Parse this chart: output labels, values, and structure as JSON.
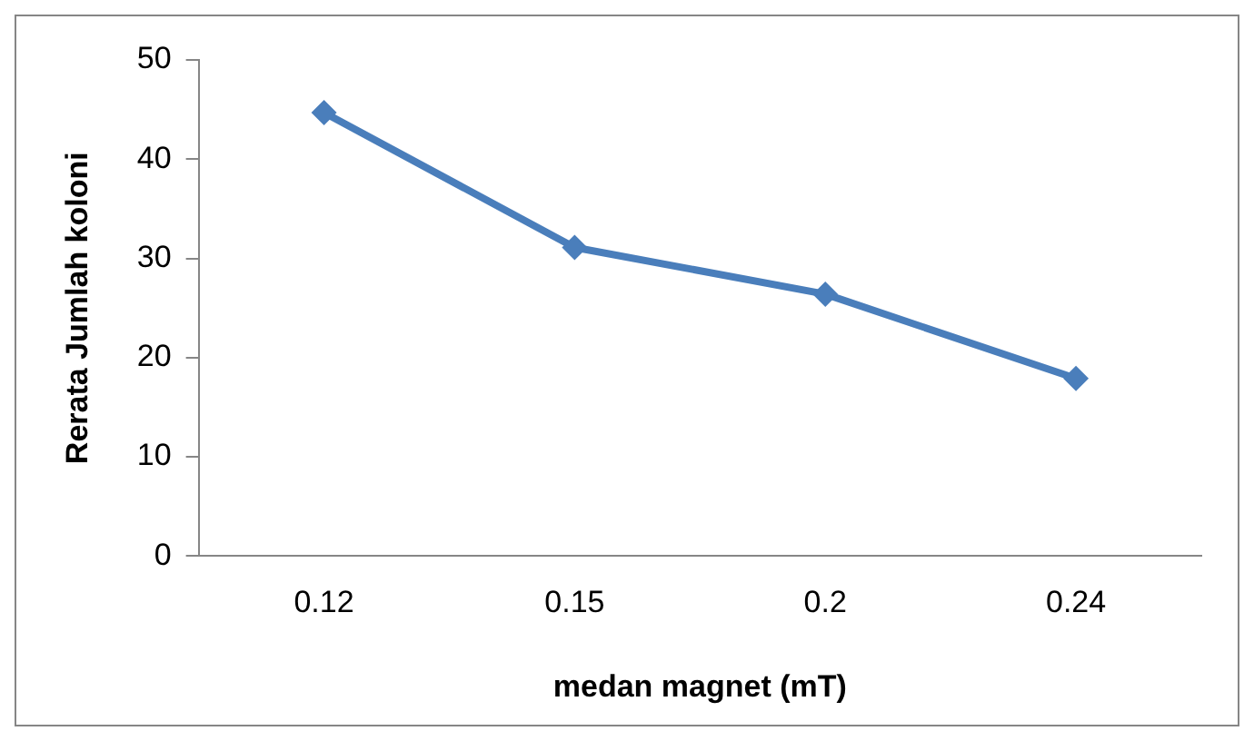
{
  "chart_data": {
    "type": "line",
    "xlabel": "medan magnet (mT)",
    "ylabel": "Rerata Jumlah koloni",
    "categories": [
      "0.12",
      "0.15",
      "0.2",
      "0.24"
    ],
    "series": [
      {
        "color": "#4a7ebb",
        "values": [
          44.7,
          31.1,
          26.4,
          17.9
        ]
      }
    ],
    "ylim": [
      0,
      50
    ],
    "yticks": [
      0,
      10,
      20,
      30,
      40,
      50
    ],
    "grid": false,
    "legend": false,
    "marker": "diamond",
    "line_style": "solid"
  }
}
